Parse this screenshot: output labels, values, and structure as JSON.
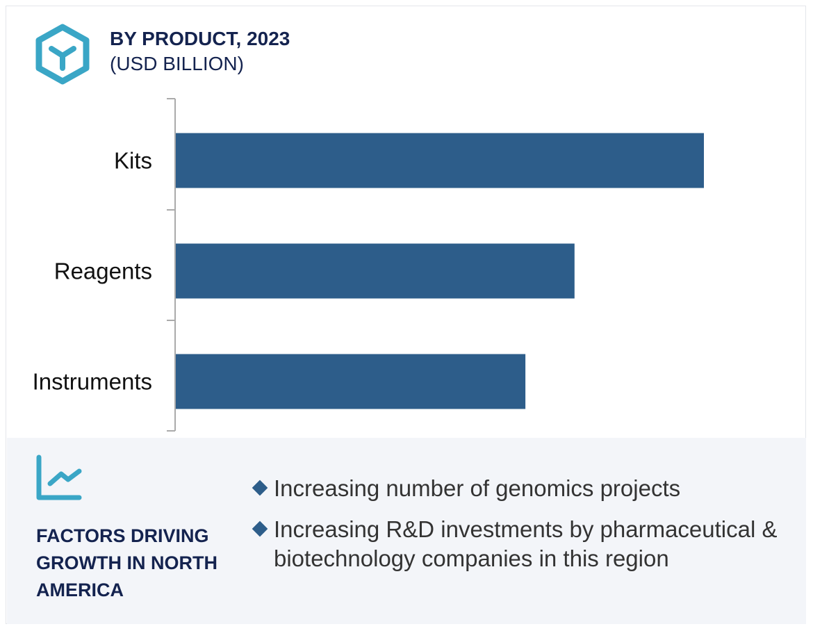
{
  "header": {
    "title": "BY PRODUCT, 2023",
    "subtitle": "(USD BILLION)",
    "icon": "cube-icon"
  },
  "chart_data": {
    "type": "bar",
    "orientation": "horizontal",
    "title": "BY PRODUCT, 2023",
    "subtitle": "(USD BILLION)",
    "categories": [
      "Kits",
      "Reagents",
      "Instruments"
    ],
    "values": [
      1.0,
      0.755,
      0.662
    ],
    "value_note": "relative lengths; no value axis printed",
    "xlim": [
      0,
      1.18
    ],
    "grid": false,
    "bar_color": "#2d5d8a"
  },
  "factors": {
    "icon": "line-chart-icon",
    "heading": "FACTORS DRIVING GROWTH IN NORTH AMERICA",
    "items": [
      "Increasing number of genomics projects",
      "Increasing R&D investments by pharmaceutical & biotechnology companies in this region"
    ]
  },
  "colors": {
    "accent": "#3aa6c6",
    "navy": "#14234f",
    "bar": "#2d5d8a",
    "panel": "#f3f5f9"
  }
}
